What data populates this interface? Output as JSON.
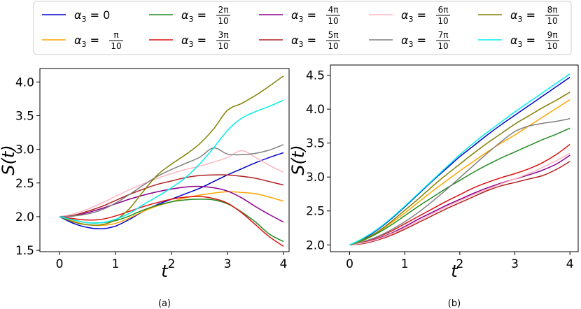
{
  "legend": {
    "entries": [
      {
        "label": "α3 = 0",
        "color": "#0000cd"
      },
      {
        "label": "α3 = π/10",
        "color": "#ffa500"
      },
      {
        "label": "α3 = 2π/10",
        "color": "#228b22"
      },
      {
        "label": "α3 = 3π/10",
        "color": "#dd1111"
      },
      {
        "label": "α3 = 4π/10",
        "color": "#8b008b"
      },
      {
        "label": "α3 = 5π/10",
        "color": "#b22222"
      },
      {
        "label": "α3 = 6π/10",
        "color": "#ffb6c1"
      },
      {
        "label": "α3 = 7π/10",
        "color": "#808080"
      },
      {
        "label": "α3 = 8π/10",
        "color": "#808000"
      },
      {
        "label": "α3 = 9π/10",
        "color": "#00eeee"
      }
    ]
  },
  "chart_data": [
    {
      "type": "line",
      "caption": "(a)",
      "xlabel": "t",
      "ylabel": "S(t)",
      "xlim": [
        -0.35,
        4.1
      ],
      "ylim": [
        1.48,
        4.2
      ],
      "xticks": [
        0,
        1,
        2,
        3,
        4
      ],
      "yticks": [
        1.5,
        2.0,
        2.5,
        3.0,
        3.5,
        4.0
      ],
      "x": [
        0,
        0.25,
        0.5,
        0.75,
        1,
        1.25,
        1.5,
        1.75,
        2,
        2.25,
        2.5,
        2.75,
        3,
        3.25,
        3.5,
        3.75,
        4
      ],
      "series": [
        {
          "name": "α3 = 0",
          "values": [
            2.0,
            1.9,
            1.84,
            1.82,
            1.86,
            1.96,
            2.08,
            2.18,
            2.26,
            2.34,
            2.42,
            2.52,
            2.62,
            2.71,
            2.8,
            2.88,
            2.95
          ]
        },
        {
          "name": "α3 = π/10",
          "values": [
            2.0,
            1.93,
            1.88,
            1.87,
            1.9,
            1.98,
            2.08,
            2.16,
            2.22,
            2.28,
            2.32,
            2.35,
            2.37,
            2.36,
            2.34,
            2.29,
            2.23
          ]
        },
        {
          "name": "α3 = 2π/10",
          "values": [
            2.0,
            1.95,
            1.91,
            1.91,
            1.94,
            2.01,
            2.1,
            2.17,
            2.22,
            2.25,
            2.26,
            2.25,
            2.19,
            2.07,
            1.92,
            1.74,
            1.63
          ]
        },
        {
          "name": "α3 = 3π/10",
          "values": [
            2.0,
            1.97,
            1.95,
            1.96,
            2.01,
            2.08,
            2.15,
            2.21,
            2.26,
            2.29,
            2.3,
            2.27,
            2.2,
            2.06,
            1.88,
            1.7,
            1.56
          ]
        },
        {
          "name": "α3 = 4π/10",
          "values": [
            2.0,
            2.01,
            2.06,
            2.12,
            2.19,
            2.26,
            2.32,
            2.37,
            2.41,
            2.44,
            2.45,
            2.43,
            2.38,
            2.28,
            2.15,
            2.03,
            1.92
          ]
        },
        {
          "name": "α3 = 5π/10",
          "values": [
            2.0,
            2.02,
            2.08,
            2.15,
            2.24,
            2.33,
            2.41,
            2.48,
            2.53,
            2.58,
            2.61,
            2.62,
            2.62,
            2.6,
            2.57,
            2.52,
            2.47
          ]
        },
        {
          "name": "α3 = 6π/10",
          "values": [
            2.0,
            2.04,
            2.11,
            2.2,
            2.3,
            2.4,
            2.49,
            2.57,
            2.64,
            2.7,
            2.75,
            2.81,
            2.88,
            2.98,
            2.88,
            2.76,
            2.66
          ]
        },
        {
          "name": "α3 = 7π/10",
          "values": [
            2.0,
            2.01,
            2.04,
            2.1,
            2.2,
            2.33,
            2.47,
            2.6,
            2.7,
            2.79,
            2.88,
            3.02,
            2.93,
            2.92,
            2.94,
            2.99,
            3.07
          ]
        },
        {
          "name": "α3 = 8π/10",
          "values": [
            2.0,
            1.92,
            1.88,
            1.88,
            1.95,
            2.12,
            2.38,
            2.62,
            2.78,
            2.92,
            3.08,
            3.3,
            3.58,
            3.68,
            3.8,
            3.94,
            4.09
          ]
        },
        {
          "name": "α3 = 9π/10",
          "values": [
            2.0,
            1.95,
            1.91,
            1.91,
            1.96,
            2.05,
            2.18,
            2.3,
            2.43,
            2.58,
            2.78,
            3.02,
            3.28,
            3.46,
            3.56,
            3.64,
            3.73
          ]
        }
      ]
    },
    {
      "type": "line",
      "caption": "(b)",
      "xlabel": "t",
      "ylabel": "S(t)",
      "xlim": [
        -0.35,
        4.15
      ],
      "ylim": [
        1.9,
        4.65
      ],
      "xticks": [
        0,
        1,
        2,
        3,
        4
      ],
      "yticks": [
        2.0,
        2.5,
        3.0,
        3.5,
        4.0,
        4.5
      ],
      "x": [
        0,
        0.25,
        0.5,
        0.75,
        1,
        1.25,
        1.5,
        1.75,
        2,
        2.25,
        2.5,
        2.75,
        3,
        3.25,
        3.5,
        3.75,
        4
      ],
      "series": [
        {
          "name": "α3 = 0",
          "values": [
            2.0,
            2.09,
            2.22,
            2.38,
            2.56,
            2.75,
            2.94,
            3.12,
            3.3,
            3.46,
            3.62,
            3.77,
            3.91,
            4.05,
            4.19,
            4.33,
            4.47
          ]
        },
        {
          "name": "α3 = π/10",
          "values": [
            2.0,
            2.07,
            2.18,
            2.32,
            2.47,
            2.63,
            2.79,
            2.94,
            3.09,
            3.23,
            3.37,
            3.5,
            3.62,
            3.75,
            3.88,
            4.01,
            4.14
          ]
        },
        {
          "name": "α3 = 2π/10",
          "values": [
            2.0,
            2.07,
            2.17,
            2.29,
            2.43,
            2.57,
            2.7,
            2.83,
            2.95,
            3.07,
            3.18,
            3.28,
            3.37,
            3.46,
            3.55,
            3.63,
            3.72
          ]
        },
        {
          "name": "α3 = 3π/10",
          "values": [
            2.0,
            2.04,
            2.11,
            2.2,
            2.31,
            2.42,
            2.53,
            2.64,
            2.74,
            2.84,
            2.92,
            2.99,
            3.05,
            3.12,
            3.21,
            3.33,
            3.48
          ]
        },
        {
          "name": "α3 = 4π/10",
          "values": [
            2.0,
            2.03,
            2.09,
            2.17,
            2.27,
            2.38,
            2.48,
            2.58,
            2.67,
            2.76,
            2.84,
            2.91,
            2.97,
            3.03,
            3.1,
            3.19,
            3.32
          ]
        },
        {
          "name": "α3 = 5π/10",
          "values": [
            2.0,
            2.02,
            2.07,
            2.14,
            2.23,
            2.33,
            2.43,
            2.53,
            2.62,
            2.71,
            2.8,
            2.87,
            2.92,
            2.97,
            3.02,
            3.11,
            3.23
          ]
        },
        {
          "name": "α3 = 6π/10",
          "values": [
            2.0,
            2.03,
            2.08,
            2.16,
            2.25,
            2.35,
            2.46,
            2.56,
            2.65,
            2.74,
            2.82,
            2.9,
            2.97,
            3.05,
            3.14,
            3.24,
            3.35
          ]
        },
        {
          "name": "α3 = 7π/10",
          "values": [
            2.0,
            2.05,
            2.12,
            2.22,
            2.34,
            2.48,
            2.64,
            2.81,
            2.99,
            3.17,
            3.35,
            3.52,
            3.67,
            3.75,
            3.79,
            3.82,
            3.86
          ]
        },
        {
          "name": "α3 = 8π/10",
          "values": [
            2.0,
            2.08,
            2.19,
            2.34,
            2.51,
            2.68,
            2.86,
            3.03,
            3.19,
            3.35,
            3.5,
            3.64,
            3.78,
            3.9,
            4.02,
            4.13,
            4.25
          ]
        },
        {
          "name": "α3 = 9π/10",
          "values": [
            2.0,
            2.1,
            2.23,
            2.39,
            2.57,
            2.76,
            2.95,
            3.14,
            3.33,
            3.5,
            3.66,
            3.81,
            3.96,
            4.1,
            4.24,
            4.38,
            4.52
          ]
        }
      ]
    }
  ]
}
